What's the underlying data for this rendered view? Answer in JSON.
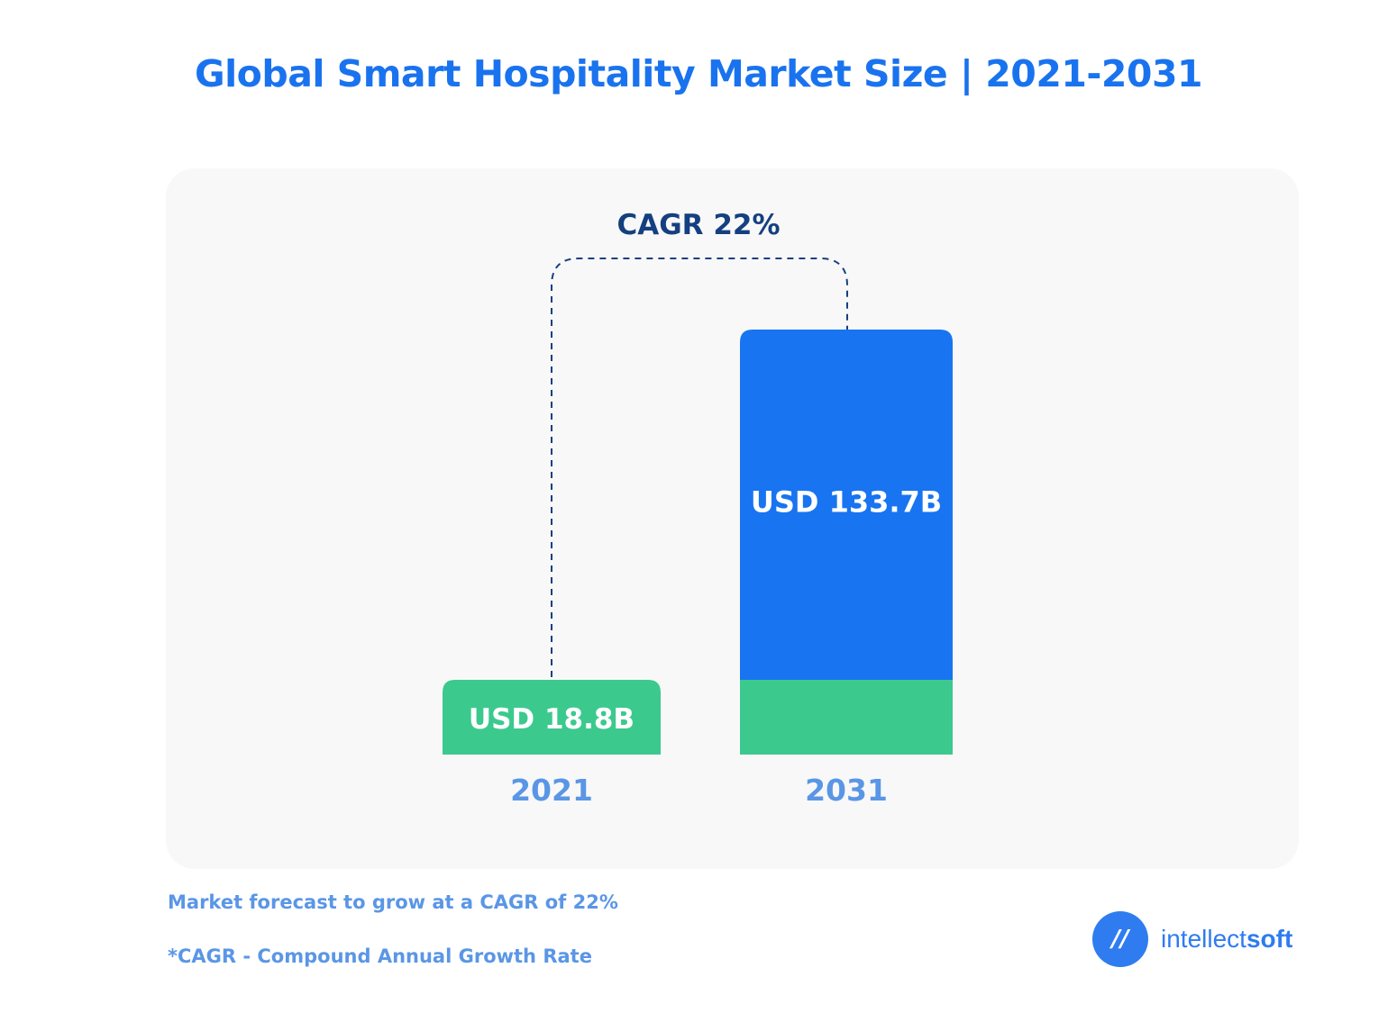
{
  "chart_data": {
    "type": "bar",
    "title": "Global Smart Hospitality Market Size | 2021-2031",
    "categories": [
      "2021",
      "2031"
    ],
    "values": [
      18.8,
      133.7
    ],
    "data_labels": [
      "USD 18.8B",
      "USD 133.7B"
    ],
    "annotation": "CAGR 22%",
    "colors": {
      "base": "#3cc98e",
      "growth": "#1874f0",
      "axis_label": "#5a96e6",
      "annotation": "#15407f"
    },
    "grid": false
  },
  "notes": [
    "Market forecast to grow at a CAGR of 22%",
    "*CAGR - Compound Annual Growth Rate"
  ],
  "logo": {
    "text_light": "intellect",
    "text_bold": "soft",
    "icon": "intellectsoft-logo-icon"
  }
}
